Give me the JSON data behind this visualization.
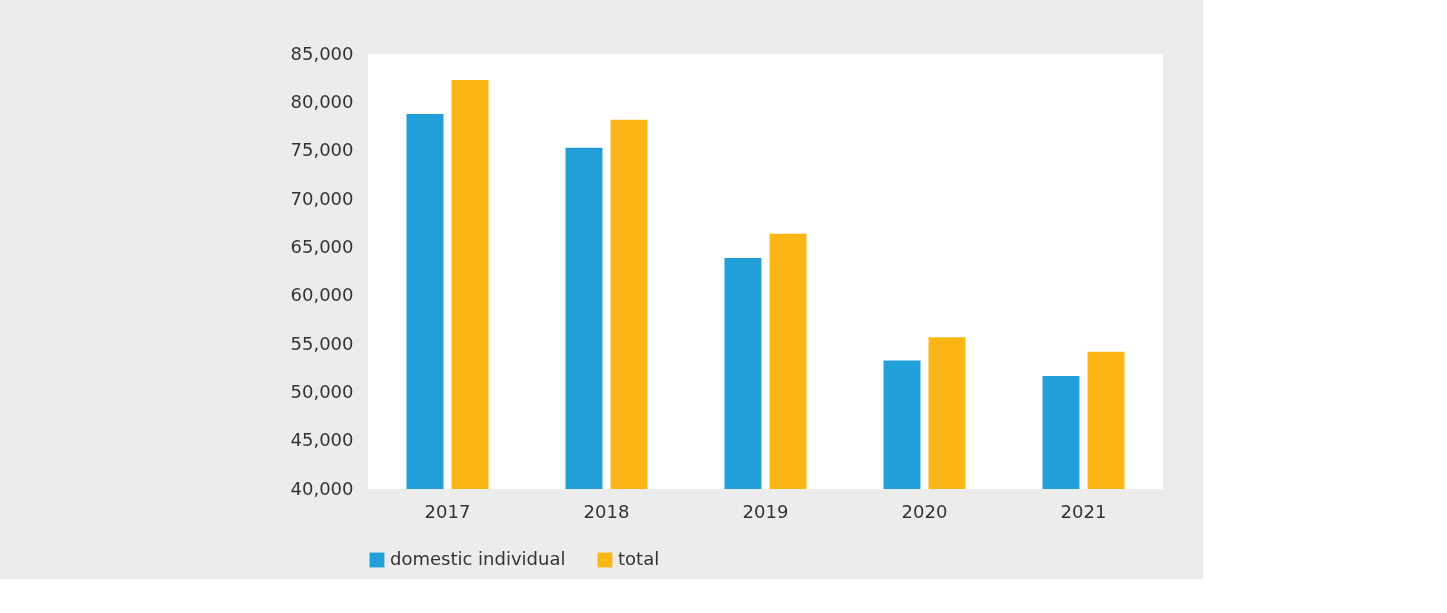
{
  "chart_data": {
    "type": "bar",
    "categories": [
      "2017",
      "2018",
      "2019",
      "2020",
      "2021"
    ],
    "series": [
      {
        "name": "domestic individual",
        "color": "#229fd9",
        "values": [
          78800,
          75300,
          63900,
          53300,
          51700
        ]
      },
      {
        "name": "total",
        "color": "#fbb615",
        "values": [
          82300,
          78200,
          66400,
          55700,
          54200
        ]
      }
    ],
    "ylim": [
      40000,
      85000
    ],
    "yticks": [
      {
        "value": 40000,
        "label": "40,000"
      },
      {
        "value": 45000,
        "label": "45,000"
      },
      {
        "value": 50000,
        "label": "50,000"
      },
      {
        "value": 55000,
        "label": "55,000"
      },
      {
        "value": 60000,
        "label": "60,000"
      },
      {
        "value": 65000,
        "label": "65,000"
      },
      {
        "value": 70000,
        "label": "70,000"
      },
      {
        "value": 75000,
        "label": "75,000"
      },
      {
        "value": 80000,
        "label": "80,000"
      },
      {
        "value": 85000,
        "label": "85,000"
      }
    ],
    "grid": false,
    "legend": "bottom"
  }
}
